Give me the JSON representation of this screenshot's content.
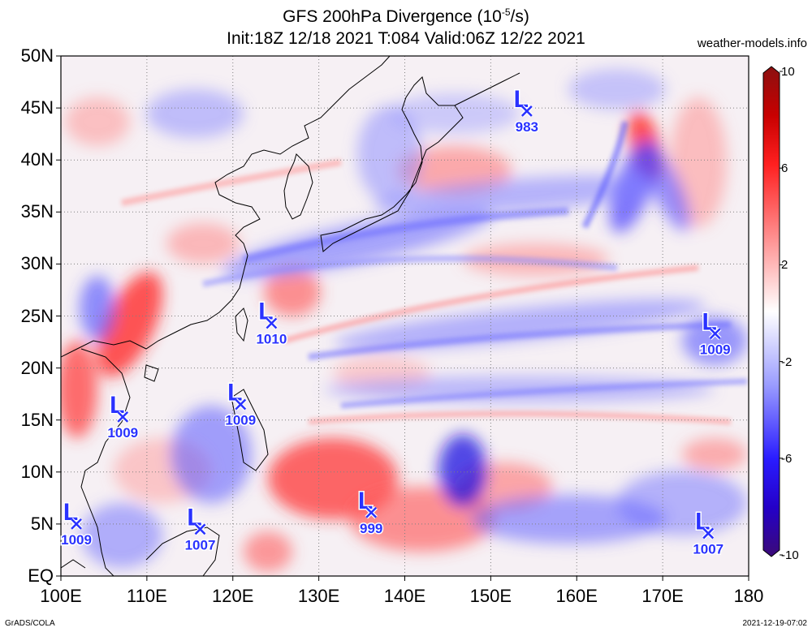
{
  "header": {
    "title_pre": "GFS 200hPa Divergence (10",
    "title_sup": "-5",
    "title_post": "/s)",
    "subtitle": "Init:18Z 12/18 2021 T:084 Valid:06Z 12/22 2021",
    "site": "weather-models.info"
  },
  "footer": {
    "left": "GrADS/COLA",
    "right": "2021-12-19-07:02"
  },
  "map": {
    "lon_range": [
      100,
      180
    ],
    "lat_range": [
      0,
      50
    ],
    "lat_labels": [
      {
        "lat": 50,
        "text": "50N"
      },
      {
        "lat": 45,
        "text": "45N"
      },
      {
        "lat": 40,
        "text": "40N"
      },
      {
        "lat": 35,
        "text": "35N"
      },
      {
        "lat": 30,
        "text": "30N"
      },
      {
        "lat": 25,
        "text": "25N"
      },
      {
        "lat": 20,
        "text": "20N"
      },
      {
        "lat": 15,
        "text": "15N"
      },
      {
        "lat": 10,
        "text": "10N"
      },
      {
        "lat": 5,
        "text": "5N"
      },
      {
        "lat": 0,
        "text": "EQ"
      }
    ],
    "lon_labels": [
      {
        "lon": 100,
        "text": "100E"
      },
      {
        "lon": 110,
        "text": "110E"
      },
      {
        "lon": 120,
        "text": "120E"
      },
      {
        "lon": 130,
        "text": "130E"
      },
      {
        "lon": 140,
        "text": "140E"
      },
      {
        "lon": 150,
        "text": "150E"
      },
      {
        "lon": 160,
        "text": "160E"
      },
      {
        "lon": 170,
        "text": "170E"
      },
      {
        "lon": 180,
        "text": "180"
      }
    ]
  },
  "lows": [
    {
      "label": "L",
      "pressure": "983",
      "lon": 154.2,
      "lat": 44.7
    },
    {
      "label": "L",
      "pressure": "1010",
      "lon": 124.5,
      "lat": 24.3
    },
    {
      "label": "L",
      "pressure": "1009",
      "lon": 176.1,
      "lat": 23.3
    },
    {
      "label": "L",
      "pressure": "1009",
      "lon": 120.9,
      "lat": 16.5
    },
    {
      "label": "L",
      "pressure": "1009",
      "lon": 107.2,
      "lat": 15.3
    },
    {
      "label": "L",
      "pressure": "999",
      "lon": 136.1,
      "lat": 6.1
    },
    {
      "label": "L",
      "pressure": "1009",
      "lon": 101.8,
      "lat": 5.0
    },
    {
      "label": "L",
      "pressure": "1007",
      "lon": 116.2,
      "lat": 4.5
    },
    {
      "label": "L",
      "pressure": "1007",
      "lon": 175.3,
      "lat": 4.1
    }
  ],
  "colorbar": {
    "min": -10,
    "max": 10,
    "labels": [
      {
        "value": 10,
        "text": "10"
      },
      {
        "value": 6,
        "text": "6"
      },
      {
        "value": 2,
        "text": "2"
      },
      {
        "value": -2,
        "text": "-2"
      },
      {
        "value": -6,
        "text": "-6"
      },
      {
        "value": -10,
        "text": "-10"
      }
    ],
    "colors": [
      "#3b0a78",
      "#2a00e6",
      "#5a5cff",
      "#b0b4ff",
      "#ffffff",
      "#ffb0b0",
      "#ff4a4a",
      "#e00000",
      "#8b1010"
    ]
  }
}
